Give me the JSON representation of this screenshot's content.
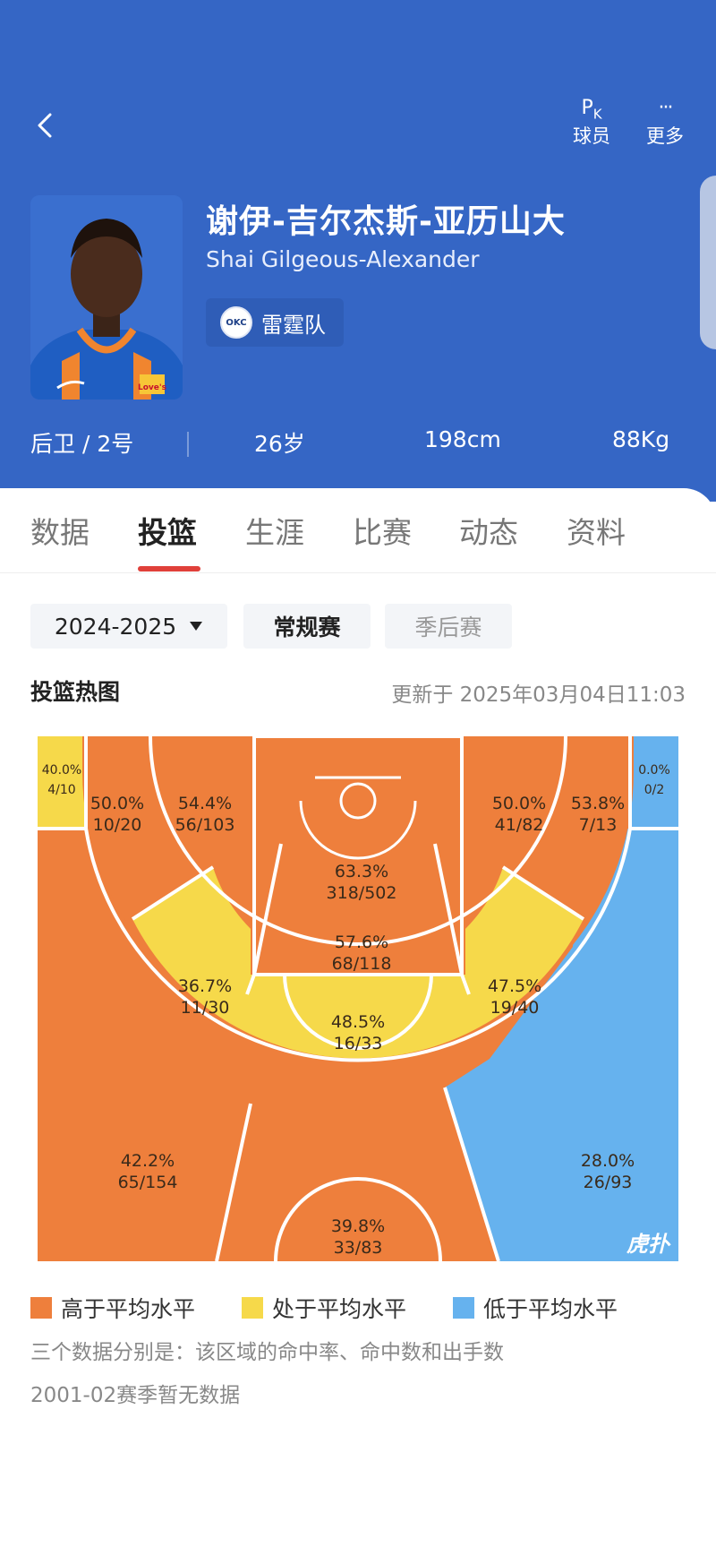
{
  "header": {
    "back_label": "back",
    "pk": {
      "glyph_p": "P",
      "glyph_k": "K",
      "label": "球员"
    },
    "more": {
      "glyph": "···",
      "label": "更多"
    }
  },
  "player": {
    "name_cn": "谢伊-吉尔杰斯-亚历山大",
    "name_en": "Shai Gilgeous-Alexander",
    "team_abbr": "OKC",
    "team": "雷霆队",
    "jersey_text": "Love's",
    "position_number": "后卫 / 2号",
    "age": "26岁",
    "height": "198cm",
    "weight": "88Kg"
  },
  "tabs": [
    "数据",
    "投篮",
    "生涯",
    "比赛",
    "动态",
    "资料"
  ],
  "active_tab": "投篮",
  "filters": {
    "season": "2024-2025",
    "regular": "常规赛",
    "playoff": "季后赛"
  },
  "section": {
    "title": "投篮热图",
    "updated": "更新于 2025年03月04日11:03"
  },
  "zones": {
    "left_corner": {
      "pct": "40.0%",
      "made": "4/10"
    },
    "left_base_mid": {
      "pct": "50.0%",
      "made": "10/20"
    },
    "left_mid": {
      "pct": "54.4%",
      "made": "56/103"
    },
    "right_mid": {
      "pct": "50.0%",
      "made": "41/82"
    },
    "right_base_mid": {
      "pct": "53.8%",
      "made": "7/13"
    },
    "right_corner": {
      "pct": "0.0%",
      "made": "0/2"
    },
    "restricted": {
      "pct": "63.3%",
      "made": "318/502"
    },
    "paint": {
      "pct": "57.6%",
      "made": "68/118"
    },
    "left_elbow": {
      "pct": "36.7%",
      "made": "11/30"
    },
    "top_mid": {
      "pct": "48.5%",
      "made": "16/33"
    },
    "right_elbow": {
      "pct": "47.5%",
      "made": "19/40"
    },
    "left_wing_three": {
      "pct": "42.2%",
      "made": "65/154"
    },
    "top_three": {
      "pct": "39.8%",
      "made": "33/83"
    },
    "right_wing_three": {
      "pct": "28.0%",
      "made": "26/93"
    }
  },
  "watermark": "虎扑",
  "colors": {
    "above": "#ee7f3c",
    "average": "#f6d94a",
    "below": "#66b2ee",
    "header": "#3566c5",
    "indicator": "#e0403a"
  },
  "legend": {
    "above": "高于平均水平",
    "average": "处于平均水平",
    "below": "低于平均水平"
  },
  "notes": [
    "三个数据分别是：该区域的命中率、命中数和出手数",
    "2001-02赛季暂无数据"
  ]
}
